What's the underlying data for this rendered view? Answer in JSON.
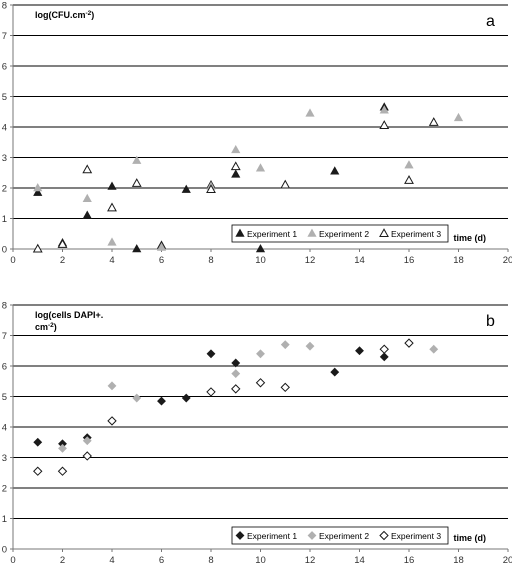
{
  "chart_data": [
    {
      "type": "scatter",
      "panel_letter": "a",
      "ylabel": "log(CFU.cm",
      "ylabel_sup": "-2",
      "ylabel_end": ")",
      "xlabel": "time (d)",
      "xlim": [
        0,
        20
      ],
      "ylim": [
        0,
        8
      ],
      "xticks": [
        "0",
        "2",
        "4",
        "6",
        "8",
        "10",
        "12",
        "14",
        "16",
        "18",
        "20"
      ],
      "yticks": [
        "0",
        "1",
        "2",
        "3",
        "4",
        "5",
        "6",
        "7",
        "8"
      ],
      "grid": "horizontal",
      "legend_position": "bottom-right",
      "marker": "triangle",
      "series": [
        {
          "name": "Experiment 1",
          "color": "#1a1a1a",
          "fill": "filled",
          "points": [
            [
              1,
              1.85
            ],
            [
              2,
              0.2
            ],
            [
              3,
              1.1
            ],
            [
              4,
              2.05
            ],
            [
              5,
              0.0
            ],
            [
              6,
              0.12
            ],
            [
              7,
              1.95
            ],
            [
              8,
              2.1
            ],
            [
              9,
              2.45
            ],
            [
              10,
              0.0
            ],
            [
              13,
              2.55
            ],
            [
              15,
              4.65
            ]
          ]
        },
        {
          "name": "Experiment 2",
          "color": "#b0b0b0",
          "fill": "filled",
          "points": [
            [
              1,
              2.0
            ],
            [
              2,
              0.15
            ],
            [
              3,
              1.65
            ],
            [
              4,
              0.22
            ],
            [
              5,
              2.9
            ],
            [
              6,
              0.05
            ],
            [
              8,
              2.05
            ],
            [
              9,
              3.25
            ],
            [
              10,
              2.65
            ],
            [
              12,
              4.45
            ],
            [
              15,
              4.55
            ],
            [
              16,
              2.75
            ],
            [
              18,
              4.3
            ]
          ]
        },
        {
          "name": "Experiment 3",
          "color": "#1a1a1a",
          "fill": "hollow",
          "points": [
            [
              1,
              0.0
            ],
            [
              2,
              0.15
            ],
            [
              3,
              2.6
            ],
            [
              4,
              1.35
            ],
            [
              5,
              2.15
            ],
            [
              8,
              1.95
            ],
            [
              9,
              2.7
            ],
            [
              11,
              2.1
            ],
            [
              15,
              4.05
            ],
            [
              16,
              2.25
            ],
            [
              17,
              4.15
            ]
          ]
        }
      ]
    },
    {
      "type": "scatter",
      "panel_letter": "b",
      "ylabel": "log(cells DAPI+.",
      "ylabel_line2": "cm",
      "ylabel_sup": "-2",
      "ylabel_end": ")",
      "xlabel": "time (d)",
      "xlim": [
        0,
        20
      ],
      "ylim": [
        0,
        8
      ],
      "xticks": [
        "0",
        "2",
        "4",
        "6",
        "8",
        "10",
        "12",
        "14",
        "16",
        "18",
        "20"
      ],
      "yticks": [
        "0",
        "1",
        "2",
        "3",
        "4",
        "5",
        "6",
        "7",
        "8"
      ],
      "grid": "horizontal",
      "legend_position": "bottom-right",
      "marker": "diamond",
      "series": [
        {
          "name": "Experiment 1",
          "color": "#1a1a1a",
          "fill": "filled",
          "points": [
            [
              1,
              3.5
            ],
            [
              2,
              3.45
            ],
            [
              3,
              3.65
            ],
            [
              6,
              4.85
            ],
            [
              7,
              4.95
            ],
            [
              8,
              6.4
            ],
            [
              9,
              6.1
            ],
            [
              13,
              5.8
            ],
            [
              14,
              6.5
            ],
            [
              15,
              6.3
            ]
          ]
        },
        {
          "name": "Experiment 2",
          "color": "#b0b0b0",
          "fill": "filled",
          "points": [
            [
              2,
              3.3
            ],
            [
              3,
              3.55
            ],
            [
              4,
              5.35
            ],
            [
              5,
              4.95
            ],
            [
              9,
              5.75
            ],
            [
              10,
              6.4
            ],
            [
              11,
              6.7
            ],
            [
              12,
              6.65
            ],
            [
              17,
              6.55
            ]
          ]
        },
        {
          "name": "Experiment 3",
          "color": "#1a1a1a",
          "fill": "hollow",
          "points": [
            [
              1,
              2.55
            ],
            [
              2,
              2.55
            ],
            [
              3,
              3.05
            ],
            [
              4,
              4.2
            ],
            [
              8,
              5.15
            ],
            [
              9,
              5.25
            ],
            [
              10,
              5.45
            ],
            [
              11,
              5.3
            ],
            [
              15,
              6.55
            ],
            [
              16,
              6.75
            ]
          ]
        }
      ]
    }
  ]
}
